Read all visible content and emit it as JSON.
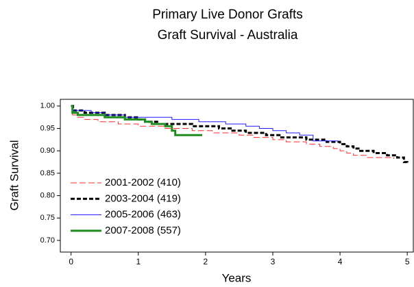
{
  "chart_data": {
    "type": "step",
    "title": [
      "Primary Live Donor Grafts",
      "Graft Survival  -  Australia"
    ],
    "x_label": "Years",
    "y_label": "Graft Survival",
    "xlim": [
      -0.16,
      5.09
    ],
    "ylim": [
      0.674,
      1.015
    ],
    "xticks": [
      0,
      1,
      2,
      3,
      4,
      5
    ],
    "yticks": [
      {
        "value": 0.7,
        "label": "0.70"
      },
      {
        "value": 0.75,
        "label": "0.75"
      },
      {
        "value": 0.8,
        "label": "0.80"
      },
      {
        "value": 0.85,
        "label": "0.85"
      },
      {
        "value": 0.9,
        "label": "0.90"
      },
      {
        "value": 0.95,
        "label": "0.95"
      },
      {
        "value": 1.0,
        "label": "1.00"
      }
    ],
    "legend": "lower left",
    "series": [
      {
        "name": "2001-2002 (410)",
        "color": "#ff2a2a",
        "width": 1,
        "dash": "9 4",
        "x": [
          0,
          0.02,
          0.1,
          0.2,
          0.4,
          0.7,
          1.0,
          1.4,
          1.8,
          2.1,
          2.5,
          2.7,
          3.0,
          3.2,
          3.5,
          3.7,
          3.9,
          4.0,
          4.1,
          4.2,
          4.4,
          4.8
        ],
        "values": [
          1.0,
          0.98,
          0.975,
          0.97,
          0.965,
          0.96,
          0.955,
          0.95,
          0.945,
          0.94,
          0.935,
          0.93,
          0.925,
          0.92,
          0.915,
          0.91,
          0.905,
          0.9,
          0.895,
          0.89,
          0.885,
          0.882
        ]
      },
      {
        "name": "2003-2004 (419)",
        "color": "#000000",
        "width": 3,
        "dash": "6 3",
        "x": [
          0,
          0.03,
          0.2,
          0.5,
          0.8,
          1.0,
          1.1,
          1.3,
          1.8,
          2.2,
          2.4,
          2.6,
          2.9,
          3.1,
          3.5,
          3.8,
          4.0,
          4.1,
          4.2,
          4.3,
          4.5,
          4.7,
          4.85,
          4.95,
          5.0
        ],
        "values": [
          1.0,
          0.99,
          0.985,
          0.98,
          0.975,
          0.97,
          0.965,
          0.96,
          0.955,
          0.95,
          0.945,
          0.94,
          0.935,
          0.93,
          0.925,
          0.92,
          0.915,
          0.91,
          0.905,
          0.9,
          0.895,
          0.89,
          0.885,
          0.875,
          0.87
        ]
      },
      {
        "name": "2005-2006 (463)",
        "color": "#1a1aff",
        "width": 1,
        "dash": "none",
        "x": [
          0,
          0.02,
          0.3,
          0.5,
          0.8,
          1.5,
          1.9,
          2.3,
          2.6,
          2.8,
          3.0,
          3.2,
          3.4,
          3.6,
          3.97
        ],
        "values": [
          1.0,
          0.99,
          0.985,
          0.98,
          0.975,
          0.97,
          0.965,
          0.96,
          0.955,
          0.95,
          0.945,
          0.94,
          0.935,
          0.922,
          0.922
        ]
      },
      {
        "name": "2007-2008 (557)",
        "color": "#1e8c1e",
        "width": 3,
        "dash": "none",
        "x": [
          0,
          0.02,
          0.1,
          0.5,
          0.8,
          1.1,
          1.2,
          1.4,
          1.5,
          1.55,
          1.95
        ],
        "values": [
          1.0,
          0.985,
          0.98,
          0.975,
          0.97,
          0.965,
          0.96,
          0.955,
          0.945,
          0.935,
          0.935
        ]
      }
    ]
  }
}
